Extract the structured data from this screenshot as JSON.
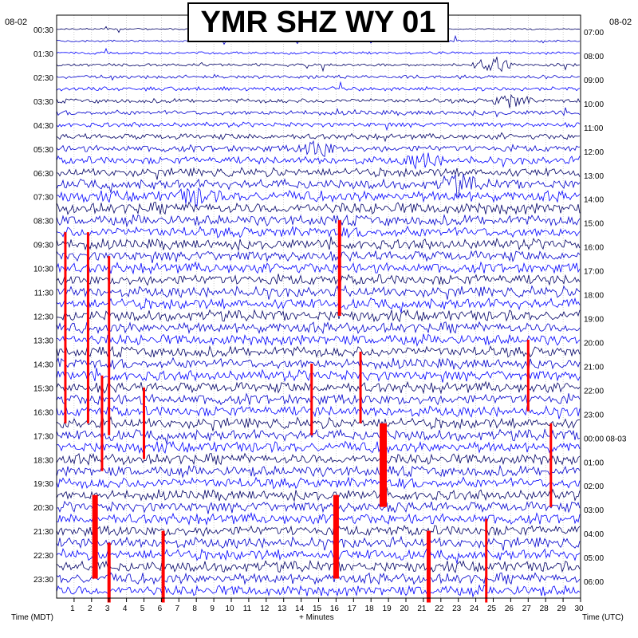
{
  "chart_data": {
    "type": "helicorder",
    "title": "YMR SHZ WY 01",
    "date_left": "08-02",
    "date_right": "08-02",
    "xlabel": "+ Minutes",
    "xlabel_left": "Time (MDT)",
    "xlabel_right": "Time (UTC)",
    "xlim": [
      0,
      30
    ],
    "x_ticks": [
      "1",
      "2",
      "3",
      "4",
      "5",
      "6",
      "7",
      "8",
      "9",
      "10",
      "11",
      "12",
      "13",
      "14",
      "15",
      "16",
      "17",
      "18",
      "19",
      "20",
      "21",
      "22",
      "23",
      "24",
      "25",
      "26",
      "27",
      "28",
      "29",
      "30"
    ],
    "trace_count": 48,
    "trace_colors": [
      "#000066",
      "#0000cd",
      "#0000ff"
    ],
    "clip_color": "#ff0000",
    "left_labels": [
      "00:30",
      "01:30",
      "02:30",
      "03:30",
      "04:30",
      "05:30",
      "06:30",
      "07:30",
      "08:30",
      "09:30",
      "10:30",
      "11:30",
      "12:30",
      "13:30",
      "14:30",
      "15:30",
      "16:30",
      "17:30",
      "18:30",
      "19:30",
      "20:30",
      "21:30",
      "22:30",
      "23:30"
    ],
    "right_labels": [
      "07:00",
      "08:00",
      "09:00",
      "10:00",
      "11:00",
      "12:00",
      "13:00",
      "14:00",
      "15:00",
      "16:00",
      "17:00",
      "18:00",
      "19:00",
      "20:00",
      "21:00",
      "22:00",
      "23:00",
      "00:00 08-03",
      "01:00",
      "02:00",
      "03:00",
      "04:00",
      "05:00",
      "06:00"
    ]
  }
}
